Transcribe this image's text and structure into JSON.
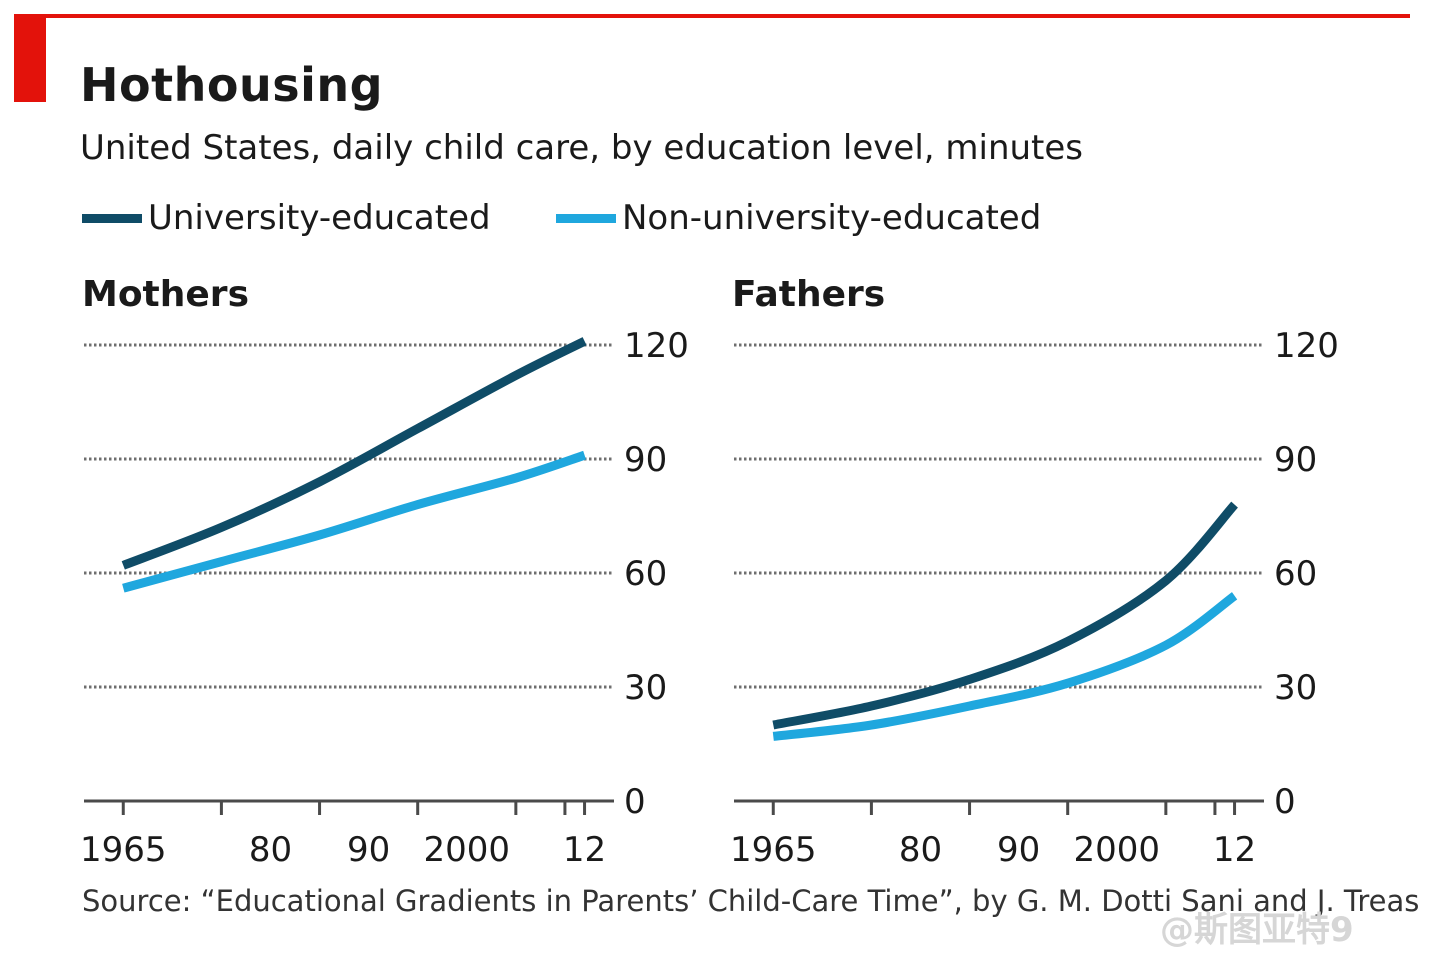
{
  "title": "Hothousing",
  "subtitle": "United States, daily child care, by education level, minutes",
  "legend": [
    {
      "label": "University-educated",
      "color": "#0f4c67"
    },
    {
      "label": "Non-university-educated",
      "color": "#1fa7de"
    }
  ],
  "source": "Source: “Educational Gradients in Parents’ Child-Care Time”, by G. M. Dotti Sani and J. Treas",
  "watermark": "@斯图亚特9",
  "chart_data": [
    {
      "type": "line",
      "title": "Mothers",
      "xlabel": "",
      "ylabel": "",
      "xlim": [
        1961,
        2015
      ],
      "ylim": [
        0,
        120
      ],
      "yticks": [
        0,
        30,
        60,
        90,
        120
      ],
      "xtick_labels": [
        {
          "value": 1965,
          "label": "1965"
        },
        {
          "value": 1980,
          "label": "80"
        },
        {
          "value": 1990,
          "label": "90"
        },
        {
          "value": 2000,
          "label": "2000"
        },
        {
          "value": 2012,
          "label": "12"
        }
      ],
      "xtick_marks": [
        1965,
        1975,
        1985,
        1995,
        2005,
        2010,
        2012
      ],
      "grid": true,
      "series": [
        {
          "name": "University-educated",
          "color": "#0f4c67",
          "x": [
            1965,
            1975,
            1985,
            1995,
            2005,
            2012
          ],
          "y": [
            62,
            72,
            84,
            98,
            112,
            121
          ]
        },
        {
          "name": "Non-university-educated",
          "color": "#1fa7de",
          "x": [
            1965,
            1975,
            1985,
            1995,
            2005,
            2012
          ],
          "y": [
            56,
            63,
            70,
            78,
            85,
            91
          ]
        }
      ]
    },
    {
      "type": "line",
      "title": "Fathers",
      "xlabel": "",
      "ylabel": "",
      "xlim": [
        1961,
        2015
      ],
      "ylim": [
        0,
        120
      ],
      "yticks": [
        0,
        30,
        60,
        90,
        120
      ],
      "xtick_labels": [
        {
          "value": 1965,
          "label": "1965"
        },
        {
          "value": 1980,
          "label": "80"
        },
        {
          "value": 1990,
          "label": "90"
        },
        {
          "value": 2000,
          "label": "2000"
        },
        {
          "value": 2012,
          "label": "12"
        }
      ],
      "xtick_marks": [
        1965,
        1975,
        1985,
        1995,
        2005,
        2010,
        2012
      ],
      "grid": true,
      "series": [
        {
          "name": "University-educated",
          "color": "#0f4c67",
          "x": [
            1965,
            1975,
            1985,
            1995,
            2005,
            2012
          ],
          "y": [
            20,
            25,
            32,
            42,
            58,
            78
          ]
        },
        {
          "name": "Non-university-educated",
          "color": "#1fa7de",
          "x": [
            1965,
            1975,
            1985,
            1995,
            2005,
            2012
          ],
          "y": [
            17,
            20,
            25,
            31,
            41,
            54
          ]
        }
      ]
    }
  ]
}
